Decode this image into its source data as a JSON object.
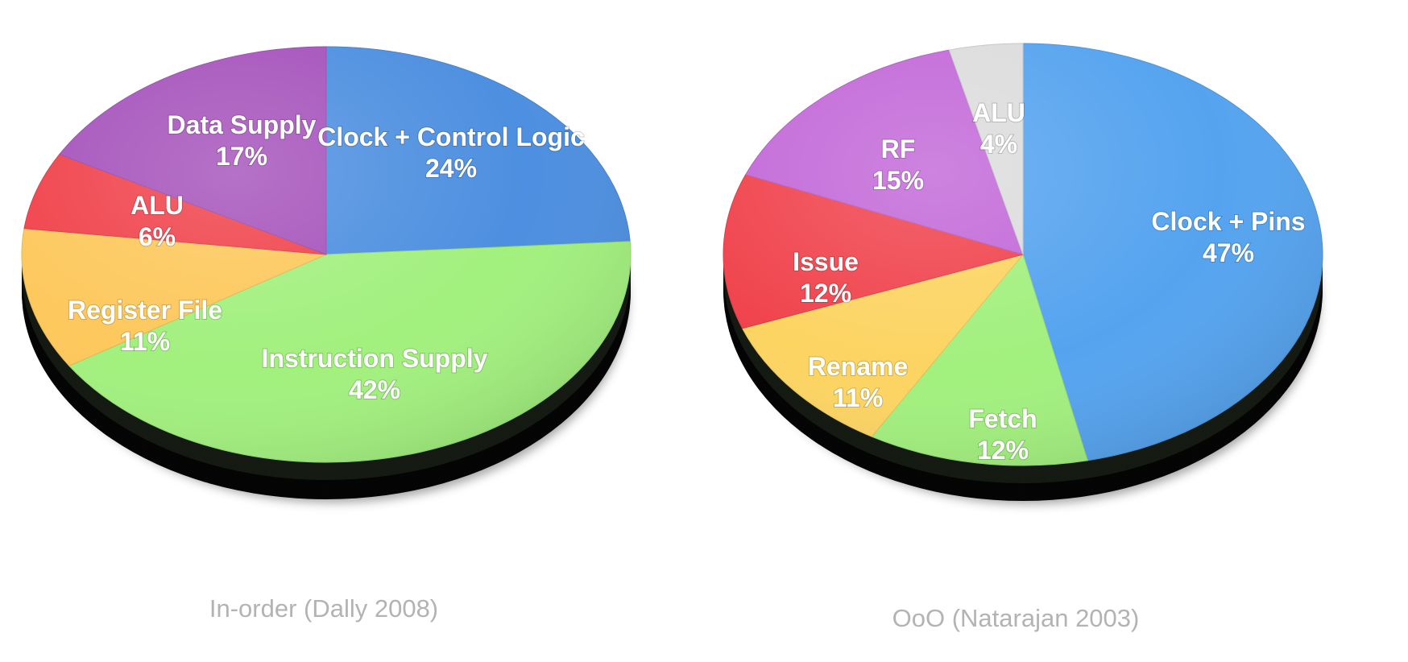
{
  "chart_data": [
    {
      "type": "pie",
      "caption": "In-order (Dally 2008)",
      "slices": [
        {
          "label": "Clock + Control Logic",
          "value_label": "24%",
          "value": 24,
          "color": "#4d8fe0"
        },
        {
          "label": "Instruction Supply",
          "value_label": "42%",
          "value": 42,
          "color": "#a2f07e"
        },
        {
          "label": "Register File",
          "value_label": "11%",
          "value": 11,
          "color": "#fdc85c"
        },
        {
          "label": "ALU",
          "value_label": "6%",
          "value": 6,
          "color": "#f0424b"
        },
        {
          "label": "Data Supply",
          "value_label": "17%",
          "value": 17,
          "color": "#a552bb"
        }
      ]
    },
    {
      "type": "pie",
      "caption": "OoO (Natarajan 2003)",
      "slices": [
        {
          "label": "Clock + Pins",
          "value_label": "47%",
          "value": 47,
          "color": "#55a3ef"
        },
        {
          "label": "Fetch",
          "value_label": "12%",
          "value": 12,
          "color": "#a2f07e"
        },
        {
          "label": "Rename",
          "value_label": "11%",
          "value": 11,
          "color": "#fcd462"
        },
        {
          "label": "Issue",
          "value_label": "12%",
          "value": 12,
          "color": "#f0434d"
        },
        {
          "label": "RF",
          "value_label": "15%",
          "value": 15,
          "color": "#c268d8"
        },
        {
          "label": "ALU",
          "value_label": "4%",
          "value": 4,
          "color": "#dcdcdc"
        }
      ]
    }
  ]
}
